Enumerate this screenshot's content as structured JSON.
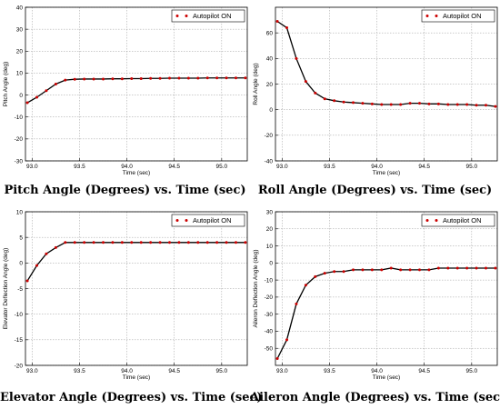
{
  "chart_data": [
    {
      "type": "line",
      "caption": "Pitch Angle (Degrees) vs. Time (sec)",
      "xlabel": "Time (sec)",
      "ylabel": "Pitch Angle (deg)",
      "xlim": [
        92.93,
        95.27
      ],
      "ylim": [
        -30,
        40
      ],
      "xticks": [
        "93.0",
        "93.5",
        "94.0",
        "94.5",
        "95.0"
      ],
      "xtick_values": [
        93.0,
        93.5,
        94.0,
        94.5,
        95.0
      ],
      "yticks": [
        "-30",
        "-20",
        "-10",
        "0",
        "10",
        "20",
        "30",
        "40"
      ],
      "ytick_values": [
        -30,
        -20,
        -10,
        0,
        10,
        20,
        30,
        40
      ],
      "grid": true,
      "legend": "top-right",
      "series": [
        {
          "name": "Autopilot ON",
          "color": "#000000",
          "marker_color": "#cc0000",
          "x": [
            92.95,
            93.05,
            93.15,
            93.25,
            93.35,
            93.45,
            93.55,
            93.65,
            93.75,
            93.85,
            93.95,
            94.05,
            94.15,
            94.25,
            94.35,
            94.45,
            94.55,
            94.65,
            94.75,
            94.85,
            94.95,
            95.05,
            95.15,
            95.25
          ],
          "y": [
            -3.5,
            -1,
            2,
            5,
            6.8,
            7.2,
            7.3,
            7.3,
            7.3,
            7.4,
            7.4,
            7.5,
            7.5,
            7.6,
            7.6,
            7.7,
            7.7,
            7.7,
            7.7,
            7.8,
            7.8,
            7.8,
            7.8,
            7.8
          ]
        }
      ]
    },
    {
      "type": "line",
      "caption": "Roll Angle (Degrees) vs. Time (sec)",
      "xlabel": "Time (sec)",
      "ylabel": "Roll Angle (deg)",
      "xlim": [
        92.93,
        95.27
      ],
      "ylim": [
        -40,
        80
      ],
      "xticks": [
        "93.0",
        "93.5",
        "94.0",
        "94.5",
        "95.0"
      ],
      "xtick_values": [
        93.0,
        93.5,
        94.0,
        94.5,
        95.0
      ],
      "yticks": [
        "-40",
        "-20",
        "0",
        "20",
        "40",
        "60"
      ],
      "ytick_values": [
        -40,
        -20,
        0,
        20,
        40,
        60
      ],
      "grid": true,
      "legend": "top-right",
      "series": [
        {
          "name": "Autopilot ON",
          "color": "#000000",
          "marker_color": "#cc0000",
          "x": [
            92.95,
            93.05,
            93.15,
            93.25,
            93.35,
            93.45,
            93.55,
            93.65,
            93.75,
            93.85,
            93.95,
            94.05,
            94.15,
            94.25,
            94.35,
            94.45,
            94.55,
            94.65,
            94.75,
            94.85,
            94.95,
            95.05,
            95.15,
            95.25
          ],
          "y": [
            69,
            64,
            40,
            22,
            13,
            8.5,
            7,
            6,
            5.5,
            5,
            4.5,
            4,
            4,
            4,
            5,
            5,
            4.5,
            4.5,
            4,
            4,
            4,
            3.5,
            3.5,
            2.5
          ]
        }
      ]
    },
    {
      "type": "line",
      "caption": "Elevator Angle (Degrees) vs. Time (sec)",
      "xlabel": "Time (sec)",
      "ylabel": "Elevator Deflection Angle (deg)",
      "xlim": [
        92.93,
        95.27
      ],
      "ylim": [
        -20,
        10
      ],
      "xticks": [
        "93.0",
        "93.5",
        "94.0",
        "94.5",
        "95.0"
      ],
      "xtick_values": [
        93.0,
        93.5,
        94.0,
        94.5,
        95.0
      ],
      "yticks": [
        "-20",
        "-15",
        "-10",
        "-5",
        "0",
        "5",
        "10"
      ],
      "ytick_values": [
        -20,
        -15,
        -10,
        -5,
        0,
        5,
        10
      ],
      "grid": true,
      "legend": "top-right",
      "series": [
        {
          "name": "Autopilot ON",
          "color": "#000000",
          "marker_color": "#cc0000",
          "x": [
            92.95,
            93.05,
            93.15,
            93.25,
            93.35,
            93.45,
            93.55,
            93.65,
            93.75,
            93.85,
            93.95,
            94.05,
            94.15,
            94.25,
            94.35,
            94.45,
            94.55,
            94.65,
            94.75,
            94.85,
            94.95,
            95.05,
            95.15,
            95.25
          ],
          "y": [
            -3.5,
            -0.5,
            1.8,
            3,
            4,
            4,
            4,
            4,
            4,
            4,
            4,
            4,
            4,
            4,
            4,
            4,
            4,
            4,
            4,
            4,
            4,
            4,
            4,
            4
          ]
        }
      ]
    },
    {
      "type": "line",
      "caption": "Aileron Angle (Degrees) vs. Time (sec)",
      "xlabel": "Time (sec)",
      "ylabel": "Aileron Deflection Angle (deg)",
      "xlim": [
        92.93,
        95.27
      ],
      "ylim": [
        -60,
        30
      ],
      "xticks": [
        "93.0",
        "93.5",
        "94.0",
        "94.5",
        "95.0"
      ],
      "xtick_values": [
        93.0,
        93.5,
        94.0,
        94.5,
        95.0
      ],
      "yticks": [
        "-50",
        "-40",
        "-30",
        "-20",
        "-10",
        "0",
        "10",
        "20",
        "30"
      ],
      "ytick_values": [
        -50,
        -40,
        -30,
        -20,
        -10,
        0,
        10,
        20,
        30
      ],
      "grid": true,
      "legend": "top-right",
      "series": [
        {
          "name": "Autopilot ON",
          "color": "#000000",
          "marker_color": "#cc0000",
          "x": [
            92.95,
            93.05,
            93.15,
            93.25,
            93.35,
            93.45,
            93.55,
            93.65,
            93.75,
            93.85,
            93.95,
            94.05,
            94.15,
            94.25,
            94.35,
            94.45,
            94.55,
            94.65,
            94.75,
            94.85,
            94.95,
            95.05,
            95.15,
            95.25
          ],
          "y": [
            -56,
            -45,
            -24,
            -13,
            -8,
            -6,
            -5,
            -5,
            -4,
            -4,
            -4,
            -4,
            -3,
            -4,
            -4,
            -4,
            -4,
            -3,
            -3,
            -3,
            -3,
            -3,
            -3,
            -3
          ]
        }
      ]
    }
  ]
}
